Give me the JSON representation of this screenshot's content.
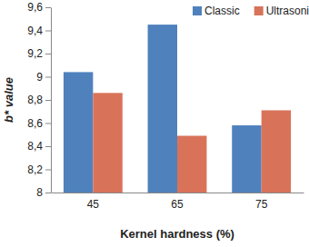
{
  "chart_data": {
    "type": "bar",
    "x_label": "Kernel hardness (%)",
    "y_label": "b* value",
    "categories": [
      "45",
      "65",
      "75"
    ],
    "series": [
      {
        "name": "Classic",
        "color": "#4f81bd",
        "values": [
          9.04,
          9.45,
          8.58
        ]
      },
      {
        "name": "Ultrasonic",
        "color": "#d8735a",
        "values": [
          8.86,
          8.49,
          8.71
        ]
      }
    ],
    "ylim": [
      8,
      9.6
    ],
    "yticks": [
      8,
      {
        "value": 8.2,
        "label": "8,2"
      },
      {
        "value": 8.4,
        "label": "8,4"
      },
      {
        "value": 8.6,
        "label": "8,6"
      },
      {
        "value": 8.8,
        "label": "8,8"
      },
      9,
      {
        "value": 9.2,
        "label": "9,2"
      },
      {
        "value": 9.4,
        "label": "9,4"
      },
      {
        "value": 9.6,
        "label": "9,6"
      }
    ],
    "grid": false,
    "legend": "top"
  }
}
